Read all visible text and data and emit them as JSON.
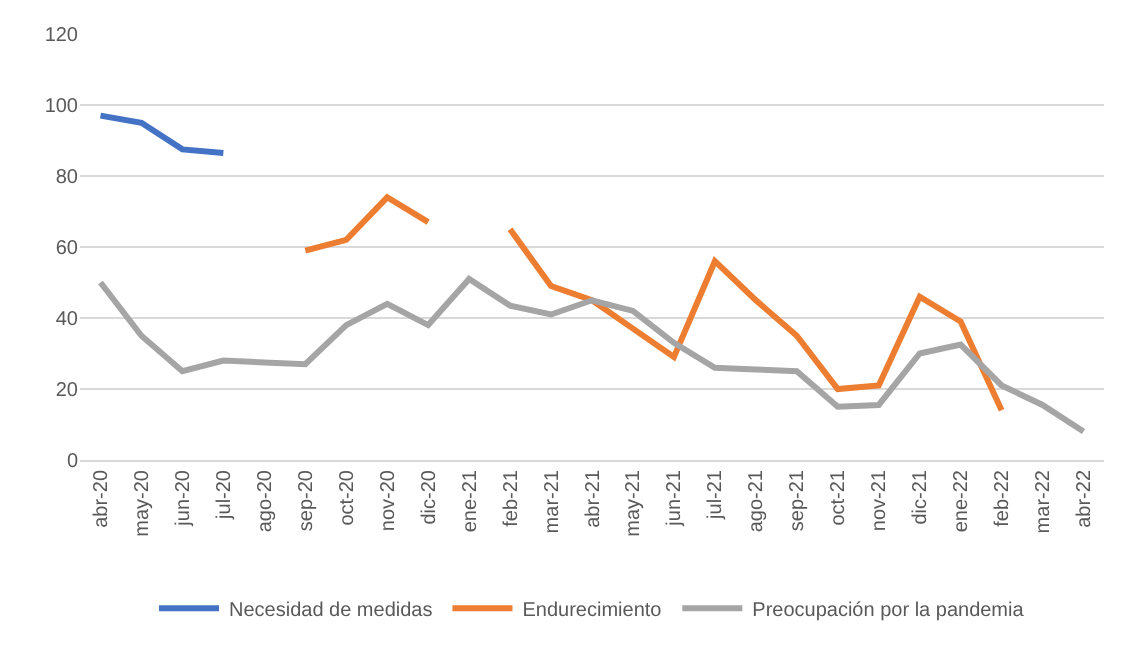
{
  "chart_data": {
    "type": "line",
    "categories": [
      "abr-20",
      "may-20",
      "jun-20",
      "jul-20",
      "ago-20",
      "sep-20",
      "oct-20",
      "nov-20",
      "dic-20",
      "ene-21",
      "feb-21",
      "mar-21",
      "abr-21",
      "may-21",
      "jun-21",
      "jul-21",
      "ago-21",
      "sep-21",
      "oct-21",
      "nov-21",
      "dic-21",
      "ene-22",
      "feb-22",
      "mar-22",
      "abr-22"
    ],
    "series": [
      {
        "name": "Necesidad de medidas",
        "color": "#4472c4",
        "values": [
          97,
          95,
          87.5,
          86.5,
          null,
          null,
          null,
          null,
          null,
          null,
          null,
          null,
          null,
          null,
          null,
          null,
          null,
          null,
          null,
          null,
          null,
          null,
          null,
          null,
          null
        ]
      },
      {
        "name": "Endurecimiento",
        "color": "#ed7d31",
        "values": [
          null,
          null,
          null,
          null,
          null,
          59,
          62,
          74,
          67,
          null,
          65,
          49,
          45,
          37,
          29,
          56,
          45,
          35,
          20,
          21,
          46,
          39,
          14,
          null,
          null
        ]
      },
      {
        "name": "Preocupación por la pandemia",
        "color": "#a5a5a5",
        "values": [
          50,
          35,
          25,
          28,
          27.5,
          27,
          38,
          44,
          38,
          51,
          43.5,
          41,
          45,
          42,
          33,
          26,
          25.5,
          25,
          15,
          15.5,
          30,
          32.5,
          21,
          15.5,
          8
        ]
      }
    ],
    "ylim": [
      0,
      120
    ],
    "yticks": [
      0,
      20,
      40,
      60,
      80,
      100,
      120
    ],
    "grid": "y",
    "legend": "bottom",
    "marker": "none",
    "line_style": "solid"
  }
}
